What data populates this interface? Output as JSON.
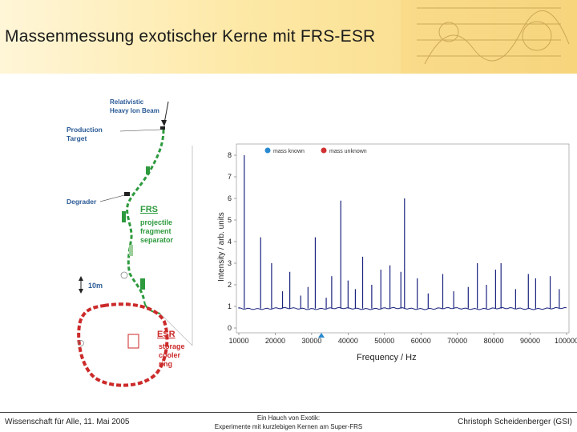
{
  "slide": {
    "title": "Massenmessung exotischer Kerne mit FRS-ESR",
    "footer_left": "Wissenschaft für Alle, 11. Mai 2005",
    "footer_center_line1": "Ein Hauch von Exotik:",
    "footer_center_line2": "Experimente mit kurzlebigen Kernen am Super-FRS",
    "footer_right": "Christoph Scheidenberger (GSI)"
  },
  "diagram": {
    "beam_label_1": "Relativistic",
    "beam_label_2": "Heavy Ion Beam",
    "target_label_1": "Production",
    "target_label_2": "Target",
    "degrader_label": "Degrader",
    "frs_title": "FRS",
    "frs_desc_1": "projectile",
    "frs_desc_2": "fragment",
    "frs_desc_3": "separator",
    "scale_label": "10m",
    "esr_title": "ESR",
    "esr_desc_1": "storage",
    "esr_desc_2": "cooler",
    "esr_desc_3": "ring",
    "colors": {
      "frs_green": "#2e9a3e",
      "esr_red": "#cc2a2a",
      "label_blue": "#2a5a96"
    }
  },
  "chart_data": {
    "type": "line",
    "xlabel": "Frequency / Hz",
    "ylabel": "Intensity / arb. units",
    "xlim": [
      10000,
      100000
    ],
    "ylim": [
      0,
      8
    ],
    "xticks": [
      "10000",
      "20000",
      "30000",
      "40000",
      "50000",
      "60000",
      "70000",
      "80000",
      "90000",
      "100000"
    ],
    "yticks": [
      "0",
      "1",
      "2",
      "3",
      "4",
      "5",
      "6",
      "7",
      "8"
    ],
    "legend": [
      {
        "name": "mass known",
        "color": "#2a8ad0"
      },
      {
        "name": "mass unknown",
        "color": "#d03030"
      }
    ],
    "legend_position": "top",
    "line_color": "#1a237e",
    "baseline": 0.9,
    "peaks": [
      {
        "x": 11500,
        "y": 8.0
      },
      {
        "x": 16000,
        "y": 4.2
      },
      {
        "x": 19000,
        "y": 3.0
      },
      {
        "x": 22000,
        "y": 1.7
      },
      {
        "x": 24000,
        "y": 2.6
      },
      {
        "x": 27000,
        "y": 1.5
      },
      {
        "x": 29000,
        "y": 1.9
      },
      {
        "x": 31000,
        "y": 4.2
      },
      {
        "x": 34000,
        "y": 1.4
      },
      {
        "x": 35500,
        "y": 2.4
      },
      {
        "x": 38000,
        "y": 5.9
      },
      {
        "x": 40000,
        "y": 2.2
      },
      {
        "x": 42000,
        "y": 1.8
      },
      {
        "x": 44000,
        "y": 3.3
      },
      {
        "x": 46500,
        "y": 2.0
      },
      {
        "x": 49000,
        "y": 2.7
      },
      {
        "x": 51500,
        "y": 2.9
      },
      {
        "x": 54500,
        "y": 2.6
      },
      {
        "x": 55500,
        "y": 6.0
      },
      {
        "x": 59000,
        "y": 2.3
      },
      {
        "x": 62000,
        "y": 1.6
      },
      {
        "x": 66000,
        "y": 2.5
      },
      {
        "x": 69000,
        "y": 1.7
      },
      {
        "x": 73000,
        "y": 1.9
      },
      {
        "x": 75500,
        "y": 3.0
      },
      {
        "x": 78000,
        "y": 2.0
      },
      {
        "x": 80500,
        "y": 2.7
      },
      {
        "x": 82000,
        "y": 3.0
      },
      {
        "x": 86000,
        "y": 1.8
      },
      {
        "x": 89500,
        "y": 2.5
      },
      {
        "x": 91500,
        "y": 2.3
      },
      {
        "x": 95500,
        "y": 2.4
      },
      {
        "x": 98000,
        "y": 1.8
      }
    ]
  }
}
